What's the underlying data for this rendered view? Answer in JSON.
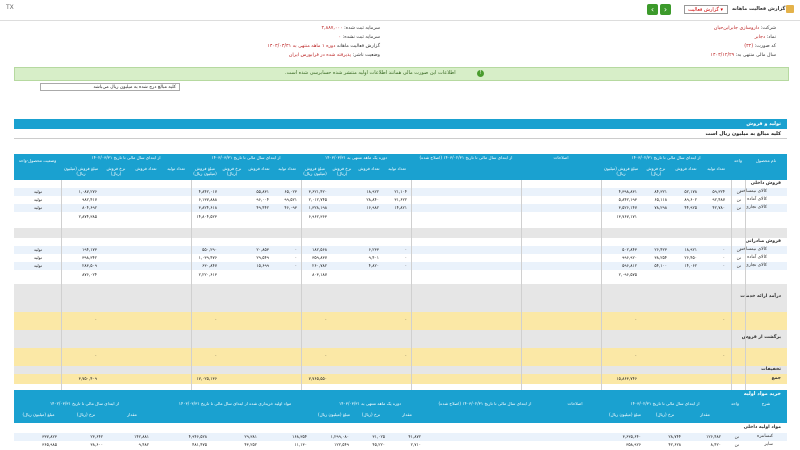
{
  "window": {
    "title": "گزارش فعالیت ماهانه",
    "report_type": "گزارش فعالیت",
    "close_label": "TX"
  },
  "info": {
    "company_label": "شرکت:",
    "company_value": "داروسازی جابرابن‌حیان",
    "symbol_label": "نماد:",
    "symbol_value": "دجابر",
    "code_label": "کد صورت:",
    "code_value": "(۳۲)",
    "report_label": "گزارش فعالیت ماهانه",
    "report_period": "دوره ۱ ماهه منتهی به ۱۴۰۳/۰۳/۳۱",
    "fiscal_label": "سال مالی منتهی به:",
    "fiscal_value": "۱۴۰۳/۱۲/۲۹",
    "capital_label": "سرمایه ثبت شده:",
    "capital_value": "۲,۸۸۷,۰۰۰",
    "unregistered_label": "سرمایه ثبت نشده:",
    "unregistered_value": "۰",
    "status_label": "وضعیت ناشر:",
    "status_value": "پذیرفته شده در فرابورس ایران"
  },
  "notice": "اطلاعات این صورت مالی همانند اطلاعات اولیه منتشر شده حسابرسی شده است.",
  "filter": "کلیه مبالغ درج شده به میلیون ریال می‌باشد",
  "section1": {
    "title": "تولید و فروش",
    "subtitle": "کلیه مبالغ به میلیون ریال است",
    "head_groups": [
      "نام محصول",
      "واحد",
      "از ابتدای سال مالی تا تاریخ ۱۴۰۳/۰۲/۳۱",
      "اصلاحات",
      "از ابتدای سال مالی تا تاریخ ۱۴۰۳/۰۲/۳۱ (اصلاح شده)",
      "دوره یک ماهه منتهی به ۱۴۰۳/۰۳/۳۱",
      "از ابتدای سال مالی تا تاریخ ۱۴۰۳/۰۳/۳۱",
      "از ابتدای سال مالی تا تاریخ ۱۴۰۲/۰۳/۳۱",
      "وضعیت محصول-واحد"
    ],
    "sub_heads": [
      "تعداد تولید",
      "تعداد فروش",
      "نرخ فروش (ریال)",
      "مبلغ فروش (میلیون ریال)"
    ],
    "domestic_title": "فروش داخلی",
    "export_title": "فروش صادراتی",
    "services_title": "درآمد ارائه خدمات",
    "returns_title": "برگشت از فروش",
    "discount_title": "تخفیفات",
    "total_title": "جمع",
    "unit_label": "میلیون",
    "status_label": "تولید",
    "domestic_rows": [
      {
        "name": "کالای نیمساخته",
        "unit": "تن",
        "c1": "۵۹,۳۲۴",
        "c2": "۵۲,۱۷۸",
        "c3": "۸۴,۳۲۱",
        "c4": "۴,۳۹۸,۸۳۱",
        "c7": "۲۱,۱۰۴",
        "c8": "۱۸,۹۲۲",
        "c9": "۳,۶۲۱,۴۲۰",
        "c10": "۶۵,۰۲۳",
        "c11": "۵۵,۸۳۱",
        "c12": "۴,۸۴۲,۰۱۷",
        "c13": "۱,۰۸۷,۲۷۶"
      },
      {
        "name": "کالای آماده",
        "unit": "تن",
        "c1": "۹۲,۴۸۷",
        "c2": "۸۹,۶۰۲",
        "c3": "۶۵,۱۱۸",
        "c4": "۵,۸۴۲,۱۹۳",
        "c7": "۳۱,۶۲۲",
        "c8": "۲۸,۸۴۰",
        "c9": "۲,۰۱۲,۷۴۵",
        "c10": "۹۹,۵۲۱",
        "c11": "۹۶,۰۰۴",
        "c12": "۶,۱۳۷,۸۸۸",
        "c13": "۹۸۲,۴۱۷"
      },
      {
        "name": "کالای تجاری",
        "unit": "تن",
        "c1": "۴۲,۷۸۰",
        "c2": "۴۴,۹۲۵",
        "c3": "۷۸,۲۹۸",
        "c4": "۳,۵۲۶,۱۴۷",
        "c7": "۱۴,۸۲۱",
        "c8": "۱۶,۹۸۲",
        "c9": "۱,۳۲۸,۱۹۸",
        "c10": "۴۶,۰۹۳",
        "c11": "۴۹,۴۴۲",
        "c12": "۳,۸۲۴,۶۱۸",
        "c13": "۸۰۴,۶۹۲"
      }
    ],
    "domestic_sum": {
      "c4": "۱۳,۷۶۷,۱۷۱",
      "c9": "۶,۹۶۲,۳۶۳",
      "c12": "۱۴,۸۰۴,۵۲۳",
      "c13": "۲,۸۷۴,۳۸۵"
    },
    "export_rows": [
      {
        "name": "کالای نیمساخته",
        "unit": "تن",
        "c1": "۰",
        "c2": "۱۸,۹۲۱",
        "c3": "۲۶,۴۲۳",
        "c4": "۵۰۲,۸۴۳",
        "c7": "۰",
        "c8": "۶,۲۳۳",
        "c9": "۱۸۲,۵۶۸",
        "c10": "۰",
        "c11": "۲۰,۸۵۳",
        "c12": "۵۵۰,۲۹۰",
        "c13": "۱۹۴,۱۷۳"
      },
      {
        "name": "کالای آماده",
        "unit": "تن",
        "c1": "۰",
        "c2": "۲۶,۴۵۰",
        "c3": "۳۸,۲۵۴",
        "c4": "۹۹۶,۹۲۰",
        "c7": "۰",
        "c8": "۹,۴۰۱",
        "c9": "۳۵۹,۸۳۷",
        "c10": "۰",
        "c11": "۲۹,۵۴۹",
        "c12": "۱,۰۳۹,۴۷۶",
        "c13": "۳۹۸,۳۴۲"
      },
      {
        "name": "کالای تجاری",
        "unit": "تن",
        "c1": "۰",
        "c2": "۱۴,۰۶۲",
        "c3": "۵۴,۱۰۰",
        "c4": "۵۹۶,۸۱۲",
        "c7": "۰",
        "c8": "۴,۸۲۰",
        "c9": "۲۶۰,۷۸۲",
        "c10": "۰",
        "c11": "۱۵,۶۹۹",
        "c12": "۶۳۰,۸۴۷",
        "c13": "۲۸۳,۵۰۹"
      }
    ],
    "export_sum": {
      "c4": "۲,۰۹۶,۵۷۵",
      "c9": "۸۰۳,۱۸۷",
      "c12": "۲,۲۲۰,۶۱۳",
      "c13": "۸۷۶,۰۲۴"
    },
    "grand_total": {
      "c4": "۱۵,۸۶۳,۷۴۶",
      "c9": "۷,۷۶۵,۵۵۰",
      "c12": "۱۷,۰۲۵,۱۳۶",
      "c13": "۳,۷۵۰,۴۰۹"
    },
    "zero": "۰"
  },
  "section2": {
    "title": "خرید مواد اولیه",
    "head_groups": [
      "شرح",
      "واحد",
      "از ابتدای سال مالی تا تاریخ ۱۴۰۳/۰۲/۳۱",
      "اصلاحات",
      "از ابتدای سال مالی تا تاریخ ۱۴۰۳/۰۲/۳۱ (اصلاح شده)",
      "دوره یک ماهه منتهی به ۱۴۰۳/۰۳/۳۱",
      "مواد اولیه خریداری شده از ابتدای سال مالی تا تاریخ ۱۴۰۳/۰۳/۳۱",
      "از ابتدای سال مالی تا تاریخ ۱۴۰۲/۰۳/۳۱"
    ],
    "sub_heads": [
      "مقدار",
      "نرخ (ریال)",
      "مبلغ (میلیون ریال)"
    ],
    "domestic_title": "مواد اولیه داخلی",
    "rows": [
      {
        "name": "کنسانتره",
        "unit": "تن",
        "v1": "۱۲۶,۴۸۲",
        "v2": "۲۸,۷۴۴",
        "v3": "۳,۶۳۵,۶۴۰",
        "v5": "۴۱,۸۷۲",
        "v6": "۳۱,۰۲۵",
        "v7": "۱,۲۹۹,۰۸۰",
        "v8": "۱۶۸,۳۵۴",
        "v9": "۲۹,۳۸۱",
        "v10": "۴,۹۴۶,۵۲۸",
        "v11": "۱۴۲,۸۸۱",
        "v12": "۲۳,۶۴۲",
        "v13": "۳۳۷,۸۲۳"
      },
      {
        "name": "سایر",
        "unit": "تن",
        "v1": "۸,۴۲۰",
        "v2": "۴۲,۶۲۸",
        "v3": "۳۵۸,۹۲۶",
        "v5": "۲,۷۱۰",
        "v6": "۴۵,۲۲۰",
        "v7": "۱۲۲,۵۴۹",
        "v8": "۱۱,۱۳۰",
        "v9": "۴۳,۲۵۲",
        "v10": "۴۸۱,۴۷۵",
        "v11": "۹,۴۸۲",
        "v12": "۳۸,۶۰۰",
        "v13": "۳۶۵,۹۸۵"
      }
    ]
  }
}
